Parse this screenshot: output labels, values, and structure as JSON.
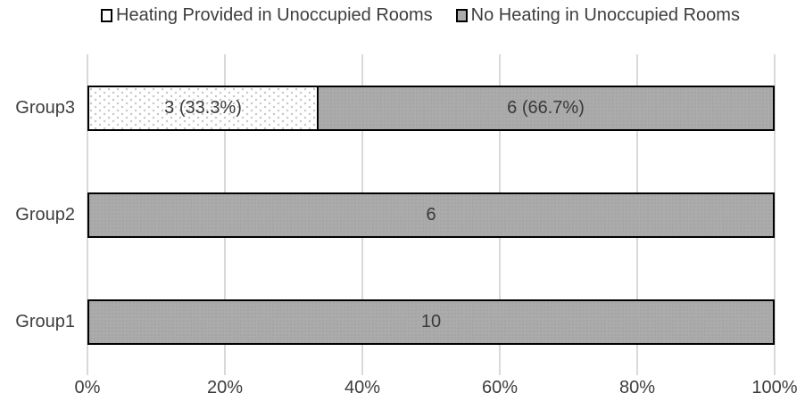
{
  "legend": {
    "items": [
      {
        "label": "Heating Provided in Unoccupied Rooms",
        "swatch": "white-dotted"
      },
      {
        "label": "No Heating in Unoccupied Rooms",
        "swatch": "gray"
      }
    ]
  },
  "colors": {
    "bar_gray_fill": "#ababab",
    "bar_border": "#000000",
    "gridline": "#d9d9d9",
    "text": "#3d3d3d",
    "dotted_pattern_dot": "#c6c6c6",
    "background": "#ffffff"
  },
  "chart_data": {
    "type": "bar",
    "orientation": "horizontal",
    "stacked": true,
    "title": "",
    "xlabel": "",
    "ylabel": "",
    "xlim": [
      0,
      100
    ],
    "grid": "vertical",
    "legend_position": "top",
    "x_ticks": [
      "0%",
      "20%",
      "40%",
      "60%",
      "80%",
      "100%"
    ],
    "categories": [
      "Group3",
      "Group2",
      "Group1"
    ],
    "series": [
      {
        "name": "Heating Provided in Unoccupied Rooms",
        "fill": "white-dotted",
        "values": [
          3,
          0,
          0
        ]
      },
      {
        "name": "No Heating in Unoccupied Rooms",
        "fill": "gray",
        "values": [
          6,
          6,
          10
        ]
      }
    ],
    "rows": [
      {
        "label": "Group3",
        "segments": [
          {
            "series": "Heating Provided in Unoccupied Rooms",
            "value": 3,
            "percent": 33.3,
            "label": "3 (33.3%)",
            "fill": "white-dotted"
          },
          {
            "series": "No Heating in Unoccupied Rooms",
            "value": 6,
            "percent": 66.7,
            "label": "6 (66.7%)",
            "fill": "gray"
          }
        ]
      },
      {
        "label": "Group2",
        "segments": [
          {
            "series": "No Heating in Unoccupied Rooms",
            "value": 6,
            "percent": 100,
            "label": "6",
            "fill": "gray"
          }
        ]
      },
      {
        "label": "Group1",
        "segments": [
          {
            "series": "No Heating in Unoccupied Rooms",
            "value": 10,
            "percent": 100,
            "label": "10",
            "fill": "gray"
          }
        ]
      }
    ]
  }
}
